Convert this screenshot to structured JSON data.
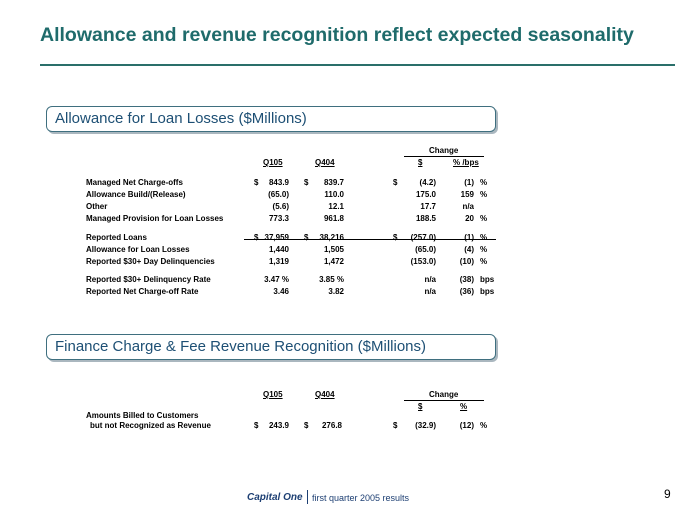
{
  "title": "Allowance and revenue recognition reflect expected seasonality",
  "section1": {
    "heading": "Allowance for Loan Losses ($Millions)",
    "change_header": "Change",
    "col_q105": "Q105",
    "col_q404": "Q404",
    "col_dollar": "$",
    "col_pct": "% /bps",
    "rows": [
      {
        "label": "Managed Net Charge-offs",
        "s1": "$",
        "q105": "843.9",
        "s2": "$",
        "q404": "839.7",
        "s3": "$",
        "chg": "(4.2)",
        "pct": "(1)",
        "unit": "%"
      },
      {
        "label": "Allowance Build/(Release)",
        "s1": "",
        "q105": "(65.0)",
        "s2": "",
        "q404": "110.0",
        "s3": "",
        "chg": "175.0",
        "pct": "159",
        "unit": "%"
      },
      {
        "label": "Other",
        "s1": "",
        "q105": "(5.6)",
        "s2": "",
        "q404": "12.1",
        "s3": "",
        "chg": "17.7",
        "pct": "n/a",
        "unit": ""
      },
      {
        "label": "Managed Provision for Loan Losses",
        "s1": "",
        "q105": "773.3",
        "s2": "",
        "q404": "961.8",
        "s3": "",
        "chg": "188.5",
        "pct": "20",
        "unit": "%"
      },
      {
        "label": "Reported Loans",
        "s1": "$",
        "q105": "37,959",
        "s2": "$",
        "q404": "38,216",
        "s3": "$",
        "chg": "(257.0)",
        "pct": "(1)",
        "unit": "%"
      },
      {
        "label": "Allowance for Loan Losses",
        "s1": "",
        "q105": "1,440",
        "s2": "",
        "q404": "1,505",
        "s3": "",
        "chg": "(65.0)",
        "pct": "(4)",
        "unit": "%"
      },
      {
        "label": "Reported $30+ Day Delinquencies",
        "s1": "",
        "q105": "1,319",
        "s2": "",
        "q404": "1,472",
        "s3": "",
        "chg": "(153.0)",
        "pct": "(10)",
        "unit": "%"
      },
      {
        "label": "Reported $30+ Delinquency Rate",
        "s1": "",
        "q105": "3.47 %",
        "s2": "",
        "q404": "3.85 %",
        "s3": "",
        "chg": "n/a",
        "pct": "(38)",
        "unit": "bps"
      },
      {
        "label": "Reported Net Charge-off Rate",
        "s1": "",
        "q105": "3.46",
        "s2": "",
        "q404": "3.82",
        "s3": "",
        "chg": "n/a",
        "pct": "(36)",
        "unit": "bps"
      }
    ]
  },
  "section2": {
    "heading": "Finance Charge & Fee Revenue Recognition ($Millions)",
    "change_header": "Change",
    "col_q105": "Q105",
    "col_q404": "Q404",
    "col_dollar": "$",
    "col_pct": "%",
    "row": {
      "label1": "Amounts Billed to Customers",
      "label2": "but not Recognized as Revenue",
      "s1": "$",
      "q105": "243.9",
      "s2": "$",
      "q404": "276.8",
      "s3": "$",
      "chg": "(32.9)",
      "pct": "(12)",
      "unit": "%"
    }
  },
  "footer": {
    "logo": "Capital One",
    "text": "first quarter 2005 results",
    "page": "9"
  }
}
